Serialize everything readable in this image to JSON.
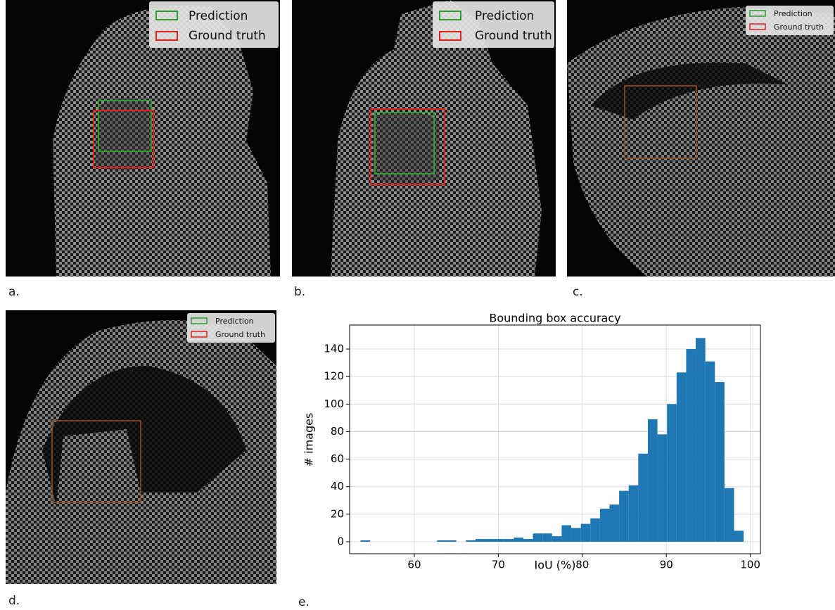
{
  "panels": [
    {
      "label": "a.",
      "legend": [
        "Prediction",
        "Ground truth"
      ]
    },
    {
      "label": "b.",
      "legend": [
        "Prediction",
        "Ground truth"
      ]
    },
    {
      "label": "c.",
      "legend": [
        "Prediction",
        "Ground truth"
      ]
    },
    {
      "label": "d.",
      "legend": [
        "Prediction",
        "Ground truth"
      ]
    }
  ],
  "chart_label": "e.",
  "chart_data": {
    "type": "histogram",
    "title": "Bounding box accuracy",
    "x_label": "IoU (%)",
    "y_label": "# images",
    "bins": [
      53.6,
      54.74,
      55.88,
      57.02,
      58.16,
      59.3,
      60.44,
      61.58,
      62.72,
      63.86,
      65,
      66.14,
      67.28,
      68.42,
      69.56,
      70.7,
      71.84,
      72.98,
      74.12,
      75.26,
      76.4,
      77.54,
      78.68,
      79.82,
      80.96,
      82.1,
      83.24,
      84.38,
      85.52,
      86.66,
      87.8,
      88.94,
      90.08,
      91.22,
      92.36,
      93.5,
      94.64,
      95.78,
      96.92,
      98.06,
      99.2
    ],
    "values": [
      1,
      0,
      0,
      0,
      0,
      0,
      0,
      0,
      1,
      1,
      0,
      1,
      2,
      2,
      2,
      2,
      3,
      2,
      6,
      6,
      4,
      12,
      10,
      13,
      17,
      24,
      27,
      37,
      41,
      64,
      89,
      78,
      100,
      123,
      140,
      148,
      131,
      116,
      39,
      8
    ],
    "color": "#1f77b4",
    "xlim": [
      52.3,
      101.2
    ],
    "ylim": [
      -8.7,
      157.4
    ],
    "xticks": [
      60,
      70,
      80,
      90,
      100
    ],
    "yticks": [
      0,
      20,
      40,
      60,
      80,
      100,
      120,
      140
    ],
    "grid": true
  }
}
